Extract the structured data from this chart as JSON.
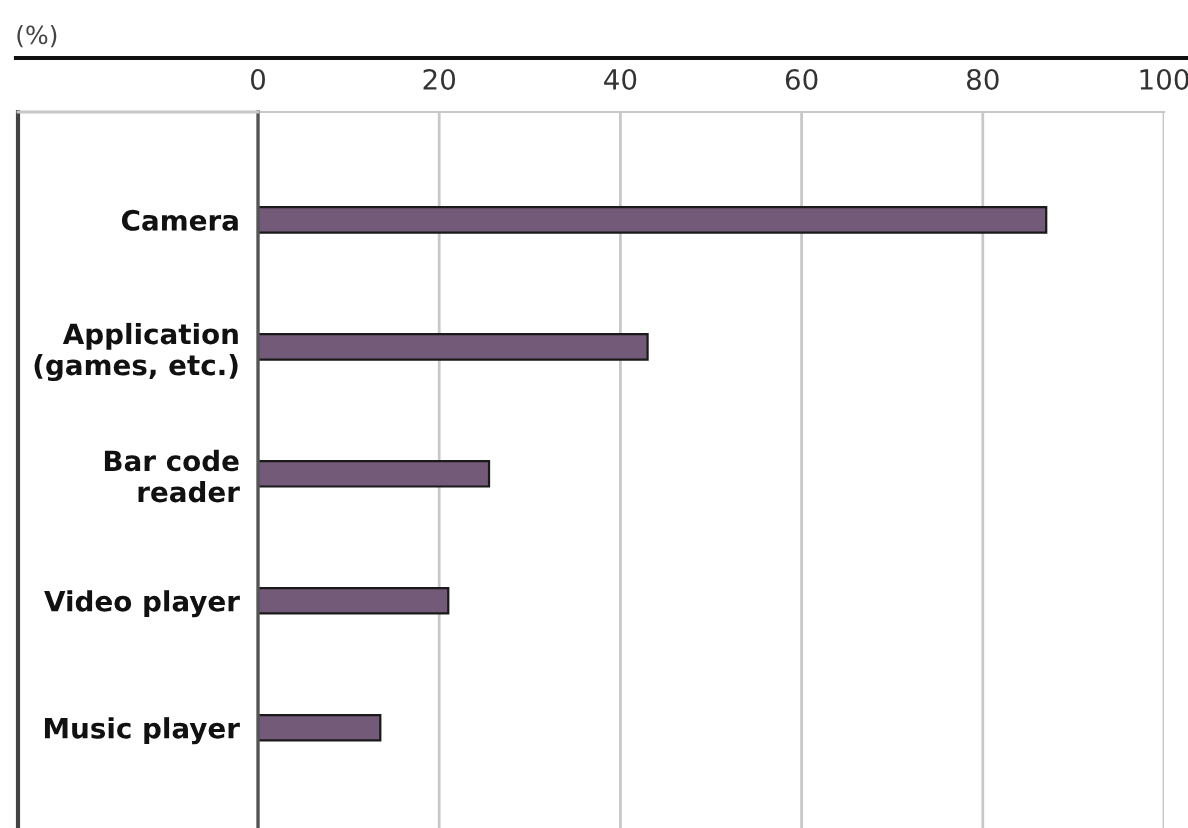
{
  "chart_data": {
    "type": "bar",
    "orientation": "horizontal",
    "xlabel": "(%)",
    "categories": [
      "Camera",
      "Application\n(games, etc.)",
      "Bar code\nreader",
      "Video player",
      "Music player"
    ],
    "values": [
      87,
      43,
      25.5,
      21,
      13.5
    ],
    "color": "#735a79",
    "xlim": [
      0,
      100
    ],
    "xticks": [
      0,
      20,
      40,
      60,
      80,
      100
    ],
    "grid": "x"
  }
}
